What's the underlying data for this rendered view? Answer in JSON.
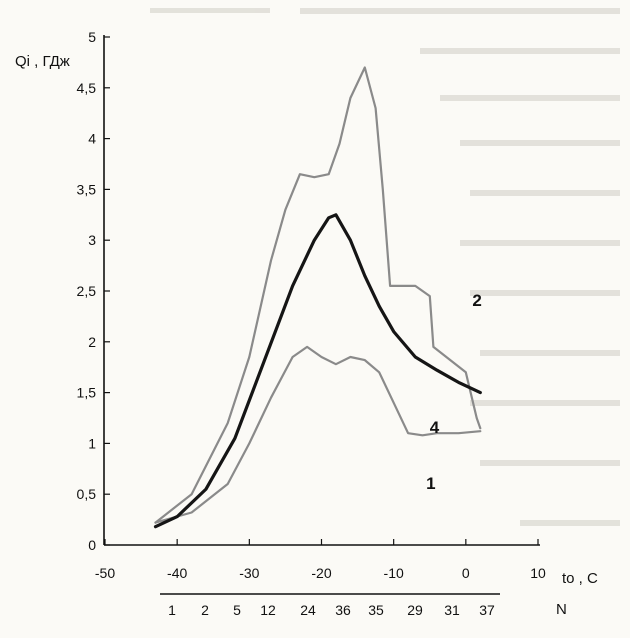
{
  "chart_data": {
    "type": "line",
    "ylabel": "Qi , ГДж",
    "xlabel": "to , C",
    "secondary_xlabel": "N",
    "xlim": [
      -50,
      10
    ],
    "ylim": [
      0,
      5
    ],
    "x_ticks": [
      "-50",
      "-40",
      "-30",
      "-20",
      "-10",
      "0",
      "10"
    ],
    "y_ticks": [
      "0",
      "0,5",
      "1",
      "1,5",
      "2",
      "2,5",
      "3",
      "3,5",
      "4",
      "4,5",
      "5"
    ],
    "y_tick_values": [
      0,
      0.5,
      1,
      1.5,
      2,
      2.5,
      3,
      3.5,
      4,
      4.5,
      5
    ],
    "x_tick_values": [
      -50,
      -40,
      -30,
      -20,
      -10,
      0,
      10
    ],
    "n_values": [
      "1",
      "2",
      "5",
      "12",
      "24",
      "36",
      "35",
      "29",
      "31",
      "37"
    ],
    "grid": false,
    "series": [
      {
        "name": "1",
        "color": "#8a8a8a",
        "points": [
          [
            -43,
            0.22
          ],
          [
            -38,
            0.32
          ],
          [
            -33,
            0.6
          ],
          [
            -30,
            1.0
          ],
          [
            -27,
            1.45
          ],
          [
            -24,
            1.85
          ],
          [
            -22,
            1.95
          ],
          [
            -20,
            1.85
          ],
          [
            -18,
            1.78
          ],
          [
            -16,
            1.85
          ],
          [
            -14,
            1.82
          ],
          [
            -12,
            1.7
          ],
          [
            -10,
            1.4
          ],
          [
            -8,
            1.1
          ],
          [
            -6,
            1.08
          ],
          [
            -4,
            1.1
          ],
          [
            -1,
            1.1
          ],
          [
            2,
            1.12
          ]
        ]
      },
      {
        "name": "2",
        "color": "#8a8a8a",
        "points": [
          [
            -43,
            0.22
          ],
          [
            -38,
            0.5
          ],
          [
            -33,
            1.2
          ],
          [
            -30,
            1.85
          ],
          [
            -27,
            2.8
          ],
          [
            -25,
            3.3
          ],
          [
            -23,
            3.65
          ],
          [
            -21,
            3.62
          ],
          [
            -19,
            3.65
          ],
          [
            -17.5,
            3.95
          ],
          [
            -16,
            4.4
          ],
          [
            -14,
            4.7
          ],
          [
            -12.5,
            4.3
          ],
          [
            -11.5,
            3.5
          ],
          [
            -10.5,
            2.55
          ],
          [
            -7,
            2.55
          ],
          [
            -5,
            2.45
          ],
          [
            -4.5,
            1.95
          ],
          [
            0,
            1.7
          ],
          [
            1.5,
            1.25
          ],
          [
            2,
            1.15
          ]
        ]
      },
      {
        "name": "4",
        "color": "#151515",
        "points": [
          [
            -43,
            0.18
          ],
          [
            -40,
            0.28
          ],
          [
            -36,
            0.55
          ],
          [
            -32,
            1.05
          ],
          [
            -28,
            1.8
          ],
          [
            -24,
            2.55
          ],
          [
            -21,
            3.0
          ],
          [
            -19,
            3.22
          ],
          [
            -18,
            3.25
          ],
          [
            -16,
            3.0
          ],
          [
            -14,
            2.65
          ],
          [
            -12,
            2.35
          ],
          [
            -10,
            2.1
          ],
          [
            -7,
            1.85
          ],
          [
            -4,
            1.72
          ],
          [
            -1,
            1.6
          ],
          [
            2,
            1.5
          ]
        ]
      }
    ]
  }
}
